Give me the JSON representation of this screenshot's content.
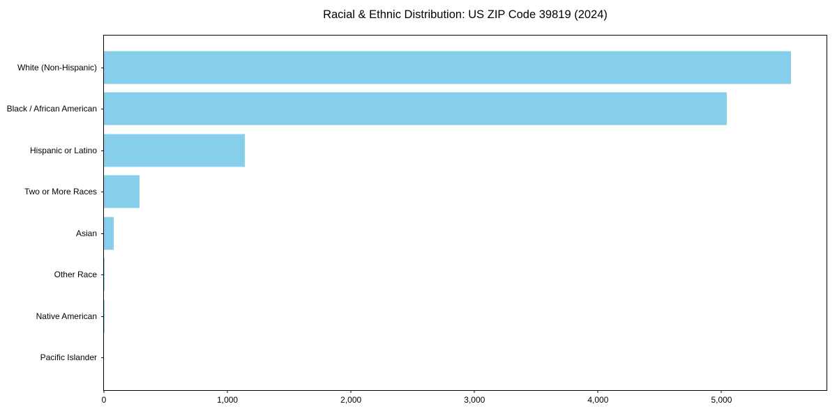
{
  "chart_data": {
    "type": "bar",
    "orientation": "horizontal",
    "title": "Racial & Ethnic Distribution: US ZIP Code 39819 (2024)",
    "categories": [
      "White (Non-Hispanic)",
      "Black / African American",
      "Hispanic or Latino",
      "Two or More Races",
      "Asian",
      "Other Race",
      "Native American",
      "Pacific Islander"
    ],
    "values": [
      5560,
      5040,
      1140,
      290,
      80,
      5,
      3,
      0
    ],
    "xlabel": "",
    "ylabel": "",
    "xlim": [
      0,
      5850
    ],
    "x_ticks": [
      0,
      1000,
      2000,
      3000,
      4000,
      5000
    ],
    "x_tick_labels": [
      "0",
      "1,000",
      "2,000",
      "3,000",
      "4,000",
      "5,000"
    ],
    "grid": false,
    "legend": null,
    "bar_color": "#87CEEB",
    "axis_color": "#000000",
    "background_color": "#ffffff"
  }
}
